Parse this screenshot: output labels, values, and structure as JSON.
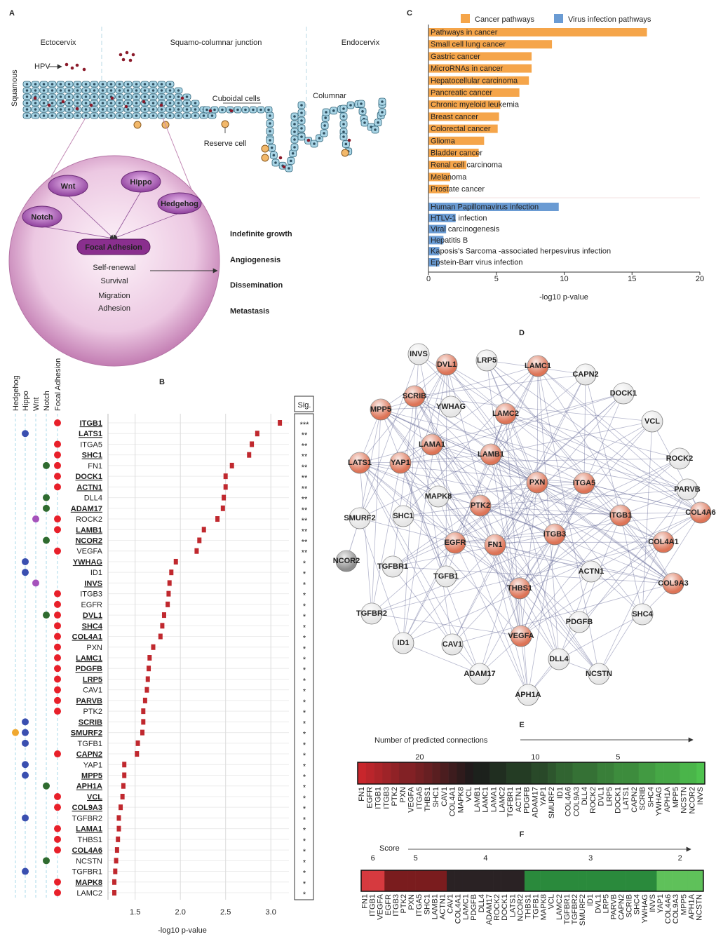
{
  "panel_labels": [
    "A",
    "B",
    "C",
    "D",
    "E",
    "F"
  ],
  "panel_a": {
    "regions": [
      "Ectocervix",
      "Squamo-columnar junction",
      "Endocervix"
    ],
    "hpv": "HPV",
    "squamous": "Squamous",
    "cuboidal": "Cuboidal cells",
    "reserve": "Reserve cell",
    "columnar": "Columnar",
    "pathways": [
      "Wnt",
      "Hippo",
      "Notch",
      "Hedgehog"
    ],
    "hub": "Focal Adhesion",
    "functions": [
      "Self-renewal",
      "Survival",
      "Migration",
      "Adhesion"
    ],
    "outcomes": [
      "Indefinite growth",
      "Angiogenesis",
      "Dissemination",
      "Metastasis"
    ]
  },
  "chart_data": [
    {
      "type": "dot",
      "xlabel": "-log10 p-value",
      "sig_header": "Sig.",
      "pathways": [
        {
          "name": "Hedgehog",
          "color": "#f0a830"
        },
        {
          "name": "Hippo",
          "color": "#3a4fb0"
        },
        {
          "name": "Wnt",
          "color": "#a552bb"
        },
        {
          "name": "Notch",
          "color": "#2f6b2f"
        },
        {
          "name": "Focal Adhesion",
          "color": "#e8202a"
        }
      ],
      "categories": [
        "ITGB1",
        "LATS1",
        "ITGA5",
        "SHC1",
        "FN1",
        "DOCK1",
        "ACTN1",
        "DLL4",
        "ADAM17",
        "ROCK2",
        "LAMB1",
        "NCOR2",
        "VEGFA",
        "YWHAG",
        "ID1",
        "INVS",
        "ITGB3",
        "EGFR",
        "DVL1",
        "SHC4",
        "COL4A1",
        "PXN",
        "LAMC1",
        "PDGFB",
        "LRP5",
        "CAV1",
        "PARVB",
        "PTK2",
        "SCRIB",
        "SMURF2",
        "TGFB1",
        "CAPN2",
        "YAP1",
        "MPP5",
        "APH1A",
        "VCL",
        "COL9A3",
        "TGFBR2",
        "LAMA1",
        "THBS1",
        "COL4A6",
        "NCSTN",
        "TGFBR1",
        "MAPK8",
        "LAMC2"
      ],
      "values": [
        3.1,
        2.85,
        2.79,
        2.76,
        2.57,
        2.5,
        2.5,
        2.48,
        2.47,
        2.41,
        2.26,
        2.21,
        2.18,
        1.95,
        1.9,
        1.88,
        1.87,
        1.86,
        1.82,
        1.8,
        1.78,
        1.7,
        1.66,
        1.65,
        1.64,
        1.63,
        1.61,
        1.59,
        1.59,
        1.58,
        1.53,
        1.52,
        1.38,
        1.38,
        1.37,
        1.36,
        1.34,
        1.32,
        1.32,
        1.31,
        1.3,
        1.29,
        1.28,
        1.27,
        1.27
      ],
      "sig": [
        "***",
        "**",
        "**",
        "**",
        "**",
        "**",
        "**",
        "**",
        "**",
        "**",
        "**",
        "**",
        "**",
        "*",
        "*",
        "*",
        "*",
        "*",
        "*",
        "*",
        "*",
        "*",
        "*",
        "*",
        "*",
        "*",
        "*",
        "*",
        "*",
        "*",
        "*",
        "*",
        "*",
        "*",
        "*",
        "*",
        "*",
        "*",
        "*",
        "*",
        "*",
        "*",
        "*",
        "*",
        "*"
      ],
      "bold": [
        true,
        true,
        false,
        true,
        false,
        true,
        true,
        false,
        true,
        false,
        true,
        true,
        false,
        true,
        false,
        true,
        false,
        false,
        true,
        true,
        true,
        false,
        true,
        true,
        true,
        false,
        true,
        false,
        true,
        true,
        false,
        true,
        false,
        true,
        true,
        true,
        true,
        false,
        true,
        false,
        true,
        false,
        false,
        true,
        false
      ],
      "membership": [
        [
          4
        ],
        [
          1
        ],
        [
          4
        ],
        [
          4
        ],
        [
          3,
          4
        ],
        [
          4
        ],
        [
          4
        ],
        [
          3
        ],
        [
          3
        ],
        [
          2,
          4
        ],
        [
          4
        ],
        [
          3
        ],
        [
          4
        ],
        [
          1
        ],
        [
          1
        ],
        [
          2
        ],
        [
          4
        ],
        [
          4
        ],
        [
          3,
          4
        ],
        [
          4
        ],
        [
          4
        ],
        [
          4
        ],
        [
          4
        ],
        [
          4
        ],
        [
          4
        ],
        [
          4
        ],
        [
          4
        ],
        [
          4
        ],
        [
          1
        ],
        [
          0,
          1
        ],
        [
          1
        ],
        [
          4
        ],
        [
          1
        ],
        [
          1
        ],
        [
          3
        ],
        [
          4
        ],
        [
          4
        ],
        [
          1
        ],
        [
          4
        ],
        [
          4
        ],
        [
          4
        ],
        [
          3
        ],
        [
          1
        ],
        [
          4
        ],
        [
          4
        ]
      ],
      "color": "#c0282e",
      "xlim": [
        1.2,
        3.2
      ],
      "xticks": [
        1.5,
        {
          "value": 2,
          "label": "2.0"
        },
        2.5,
        {
          "value": 3,
          "label": "3.0"
        }
      ],
      "grid": true
    },
    {
      "type": "barh",
      "xlabel": "-log10 p-value",
      "xlim": [
        0,
        20
      ],
      "xticks": [
        0,
        5,
        10,
        15,
        20
      ],
      "series": [
        {
          "name": "Cancer pathways",
          "color": "#f5a54a",
          "categories": [
            "Pathways in cancer",
            "Small cell lung cancer",
            "Gastric cancer",
            "MicroRNAs in cancer",
            "Hepatocellular carcinoma",
            "Pancreatic cancer",
            "Chronic myeloid leukemia",
            "Breast cancer",
            "Colorectal cancer",
            "Glioma",
            "Bladder cancer",
            "Renal cell carcinoma",
            "Melanoma",
            "Prostate cancer"
          ],
          "values": [
            16.1,
            9.1,
            7.6,
            7.6,
            7.4,
            6.7,
            5.3,
            5.2,
            5.1,
            4.1,
            3.7,
            2.8,
            1.6,
            1.5
          ]
        },
        {
          "name": "Virus infection pathways",
          "color": "#6a9bd3",
          "categories": [
            "Human Papillomavirus infection",
            "HTLV-1 infection",
            "Viral carcinogenesis",
            "Hepatitis B",
            "Kaposis's Sarcoma -associated herpesvirus infection",
            "Epstein-Barr virus infection"
          ],
          "values": [
            9.6,
            2.0,
            1.3,
            1.1,
            0.8,
            0.8
          ]
        }
      ]
    }
  ],
  "network": {
    "nodes": [
      {
        "label": "INVS",
        "color": "#e6e6e6"
      },
      {
        "label": "DVL1",
        "color": "#dd7457"
      },
      {
        "label": "LRP5",
        "color": "#e6e6e6"
      },
      {
        "label": "LAMC1",
        "color": "#dd7457"
      },
      {
        "label": "CAPN2",
        "color": "#e6e6e6"
      },
      {
        "label": "DOCK1",
        "color": "#e6e6e6"
      },
      {
        "label": "MPP5",
        "color": "#dd7457"
      },
      {
        "label": "SCRIB",
        "color": "#dd7457"
      },
      {
        "label": "YWHAG",
        "color": "#e6e6e6"
      },
      {
        "label": "LAMC2",
        "color": "#dd7457"
      },
      {
        "label": "VCL",
        "color": "#e6e6e6"
      },
      {
        "label": "LAMA1",
        "color": "#dd7457"
      },
      {
        "label": "LAMB1",
        "color": "#dd7457"
      },
      {
        "label": "LATS1",
        "color": "#dd7457"
      },
      {
        "label": "YAP1",
        "color": "#dd7457"
      },
      {
        "label": "ROCK2",
        "color": "#e6e6e6"
      },
      {
        "label": "PXN",
        "color": "#dd7457"
      },
      {
        "label": "ITGA5",
        "color": "#dd7457"
      },
      {
        "label": "PARVB",
        "color": "#e6e6e6"
      },
      {
        "label": "MAPK8",
        "color": "#e6e6e6"
      },
      {
        "label": "PTK2",
        "color": "#dd7457"
      },
      {
        "label": "ITGB1",
        "color": "#dd7457"
      },
      {
        "label": "COL4A6",
        "color": "#dd7457"
      },
      {
        "label": "SMURF2",
        "color": "#e6e6e6"
      },
      {
        "label": "SHC1",
        "color": "#e6e6e6"
      },
      {
        "label": "EGFR",
        "color": "#dd7457"
      },
      {
        "label": "FN1",
        "color": "#dd7457"
      },
      {
        "label": "ITGB3",
        "color": "#dd7457"
      },
      {
        "label": "COL4A1",
        "color": "#dd7457"
      },
      {
        "label": "NCOR2",
        "color": "#8e8e8e"
      },
      {
        "label": "TGFBR1",
        "color": "#e6e6e6"
      },
      {
        "label": "TGFB1",
        "color": "#e6e6e6"
      },
      {
        "label": "ACTN1",
        "color": "#e6e6e6"
      },
      {
        "label": "COL9A3",
        "color": "#dd7457"
      },
      {
        "label": "THBS1",
        "color": "#dd7457"
      },
      {
        "label": "SHC4",
        "color": "#e6e6e6"
      },
      {
        "label": "TGFBR2",
        "color": "#e6e6e6"
      },
      {
        "label": "PDGFB",
        "color": "#e6e6e6"
      },
      {
        "label": "VEGFA",
        "color": "#dd7457"
      },
      {
        "label": "ID1",
        "color": "#e6e6e6"
      },
      {
        "label": "CAV1",
        "color": "#e6e6e6"
      },
      {
        "label": "DLL4",
        "color": "#e6e6e6"
      },
      {
        "label": "ADAM17",
        "color": "#e6e6e6"
      },
      {
        "label": "NCSTN",
        "color": "#e6e6e6"
      },
      {
        "label": "APH1A",
        "color": "#e6e6e6"
      }
    ]
  },
  "panel_e": {
    "title": "Number of predicted connections",
    "categories": [
      "FN1",
      "EGFR",
      "ITGB1",
      "ITGB3",
      "PTK2",
      "PXN",
      "VEGFA",
      "ITGA5",
      "THBS1",
      "SHC1",
      "CAV1",
      "COL4A1",
      "MAPK8",
      "VCL",
      "LAMB1",
      "LAMC1",
      "LAMA1",
      "LAMC2",
      "TGFBR1",
      "ACTN1",
      "PDGFB",
      "ADAM17",
      "YAP1",
      "SMURF2",
      "ID1",
      "COL4A6",
      "COL9A3",
      "DLL4",
      "ROCK2",
      "DVL1",
      "LRP5",
      "DOCK1",
      "LATS1",
      "CAPN2",
      "SCRIB",
      "SHC4",
      "YWHAG",
      "APH1A",
      "MPP5",
      "NCSTN",
      "NCOR2",
      "INVS"
    ],
    "values": [
      26,
      25,
      24,
      23,
      22,
      21,
      21,
      20,
      19,
      18,
      17,
      16,
      15,
      14,
      13,
      13,
      12,
      12,
      11,
      11,
      11,
      10,
      10,
      9,
      8,
      8,
      7,
      7,
      7,
      6,
      6,
      5,
      5,
      5,
      4,
      4,
      3,
      3,
      3,
      2,
      2,
      1
    ],
    "ticks": [
      20,
      10,
      5
    ],
    "colors": [
      "#c8262c",
      "#1a1a1a",
      "#4ec24e"
    ]
  },
  "panel_f": {
    "title": "Score",
    "categories": [
      "FN1",
      "ITGB1",
      "VEGFA",
      "EGFR",
      "ITGB3",
      "PTK2",
      "PXN",
      "ITGA5",
      "SHC1",
      "LAMB1",
      "ACTN1",
      "CAV1",
      "COL4A1",
      "LAMC1",
      "PDGFB",
      "DLL4",
      "ADAM17",
      "ROCK2",
      "DOCK1",
      "LATS1",
      "NCOR2",
      "THBS1",
      "TGFB1",
      "MAPK8",
      "VCL",
      "LAMC2",
      "TGFBR1",
      "TGFBR2",
      "SMURF2",
      "ID1",
      "DVL1",
      "LRP5",
      "PARVB",
      "CAPN2",
      "SCRIB",
      "SHC4",
      "YWHAG",
      "INVS",
      "YAP1",
      "COL4A6",
      "COL9A3",
      "MPP5",
      "APH1A",
      "NCSTN"
    ],
    "values": [
      6,
      6,
      6,
      5,
      5,
      5,
      5,
      5,
      5,
      5,
      5,
      4,
      4,
      4,
      4,
      4,
      4,
      4,
      4,
      4,
      4,
      3,
      3,
      3,
      3,
      3,
      3,
      3,
      3,
      3,
      3,
      3,
      3,
      3,
      3,
      3,
      3,
      3,
      2,
      2,
      2,
      2,
      2,
      2
    ],
    "ticks": [
      6,
      5,
      4,
      3,
      2
    ],
    "colors": [
      "#d63a3f",
      "#7a1c1e",
      "#2a2224",
      "#2a8a3c",
      "#5fc15a"
    ]
  }
}
